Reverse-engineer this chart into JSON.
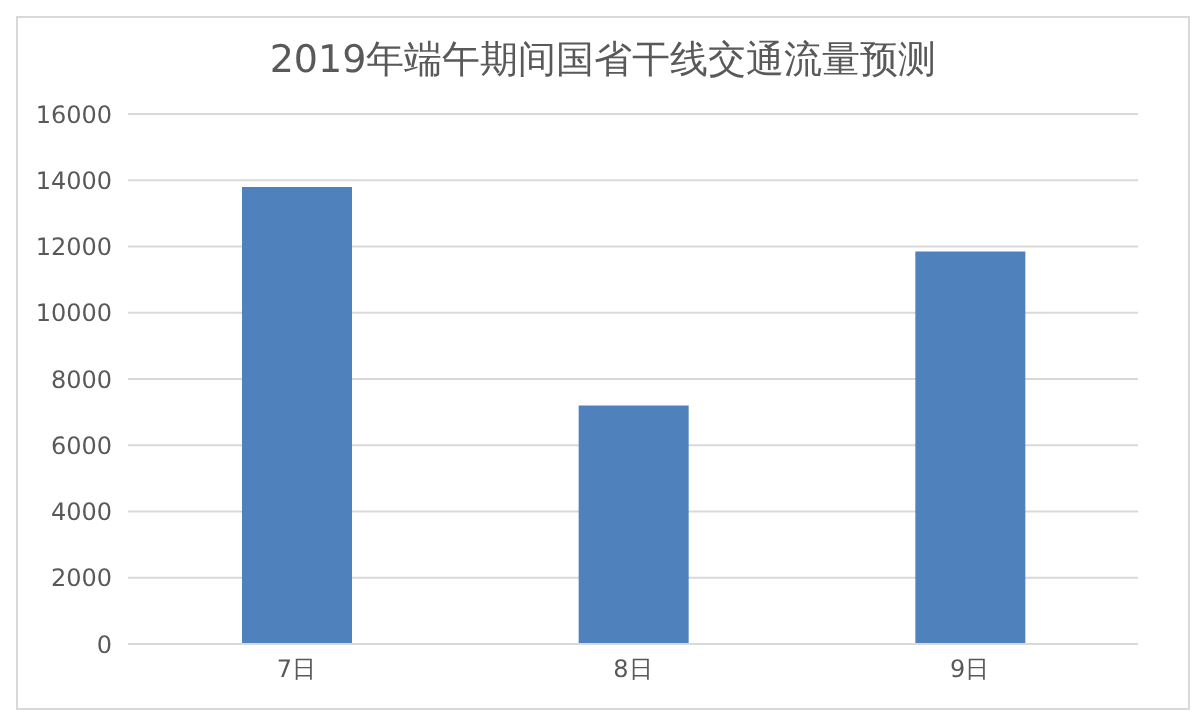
{
  "chart_data": {
    "type": "bar",
    "title": "2019年端午期间国省干线交通流量预测",
    "categories": [
      "7日",
      "8日",
      "9日"
    ],
    "values": [
      13800,
      7200,
      11850
    ],
    "color": "#4f81bd",
    "ylim": [
      0,
      16000
    ],
    "yticks": [
      0,
      2000,
      4000,
      6000,
      8000,
      10000,
      12000,
      14000,
      16000
    ],
    "grid": "y"
  }
}
